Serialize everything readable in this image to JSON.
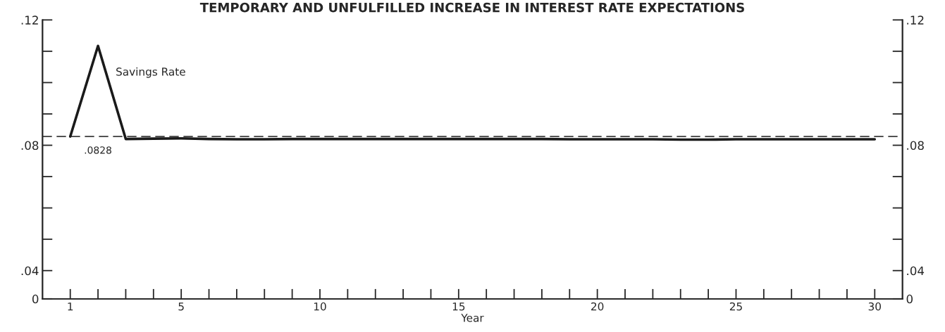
{
  "chart_data": {
    "type": "line",
    "title": "TEMPORARY AND UNFULFILLED INCREASE IN INTEREST RATE EXPECTATIONS",
    "xlabel": "Year",
    "x": [
      1,
      2,
      3,
      4,
      5,
      6,
      7,
      8,
      9,
      10,
      11,
      12,
      13,
      14,
      15,
      16,
      17,
      18,
      19,
      20,
      21,
      22,
      23,
      24,
      25,
      26,
      27,
      28,
      29,
      30
    ],
    "series": [
      {
        "name": "Savings Rate",
        "color": "#1a1a1a",
        "values": [
          0.0828,
          0.1117,
          0.082,
          0.0821,
          0.0822,
          0.082,
          0.0819,
          0.0819,
          0.082,
          0.082,
          0.082,
          0.082,
          0.082,
          0.082,
          0.082,
          0.082,
          0.082,
          0.082,
          0.0819,
          0.0819,
          0.0819,
          0.0819,
          0.0818,
          0.0818,
          0.0819,
          0.0819,
          0.0819,
          0.0819,
          0.0819,
          0.0819
        ]
      }
    ],
    "xlim": [
      0,
      31
    ],
    "xticks": [
      {
        "value": 1,
        "label": "1"
      },
      {
        "value": 2,
        "label": null
      },
      {
        "value": 3,
        "label": null
      },
      {
        "value": 4,
        "label": null
      },
      5,
      {
        "value": 6,
        "label": null
      },
      {
        "value": 7,
        "label": null
      },
      {
        "value": 8,
        "label": null
      },
      {
        "value": 9,
        "label": null
      },
      10,
      {
        "value": 11,
        "label": null
      },
      {
        "value": 12,
        "label": null
      },
      {
        "value": 13,
        "label": null
      },
      {
        "value": 14,
        "label": null
      },
      15,
      {
        "value": 16,
        "label": null
      },
      {
        "value": 17,
        "label": null
      },
      {
        "value": 18,
        "label": null
      },
      {
        "value": 19,
        "label": null
      },
      20,
      {
        "value": 21,
        "label": null
      },
      {
        "value": 22,
        "label": null
      },
      {
        "value": 23,
        "label": null
      },
      {
        "value": 24,
        "label": null
      },
      25,
      {
        "value": 26,
        "label": null
      },
      {
        "value": 27,
        "label": null
      },
      {
        "value": 28,
        "label": null
      },
      {
        "value": 29,
        "label": null
      },
      30
    ],
    "ylim": [
      0.031,
      0.12
    ],
    "yticks": [
      {
        "value": 0.031,
        "label": "0"
      },
      {
        "value": 0.04,
        "label": ".04"
      },
      {
        "value": 0.05,
        "label": null
      },
      {
        "value": 0.06,
        "label": null
      },
      {
        "value": 0.07,
        "label": null
      },
      {
        "value": 0.08,
        "label": ".08"
      },
      {
        "value": 0.09,
        "label": null
      },
      {
        "value": 0.1,
        "label": null
      },
      {
        "value": 0.11,
        "label": null
      },
      {
        "value": 0.12,
        "label": ".12"
      }
    ],
    "y2lim": [
      0.031,
      0.12
    ],
    "y2ticks": [
      {
        "value": 0.031,
        "label": "0"
      },
      {
        "value": 0.04,
        "label": ".04"
      },
      {
        "value": 0.05,
        "label": null
      },
      {
        "value": 0.06,
        "label": null
      },
      {
        "value": 0.07,
        "label": null
      },
      {
        "value": 0.08,
        "label": ".08"
      },
      {
        "value": 0.09,
        "label": null
      },
      {
        "value": 0.1,
        "label": null
      },
      {
        "value": 0.11,
        "label": null
      },
      {
        "value": 0.12,
        "label": ".12"
      }
    ],
    "ref_lines": [
      {
        "axis": "y",
        "value": 0.0828,
        "label": ".0828",
        "color": "#1a1a1a",
        "line_style": "dashed"
      }
    ],
    "grid": false,
    "marker": "none",
    "line_style": "solid"
  }
}
